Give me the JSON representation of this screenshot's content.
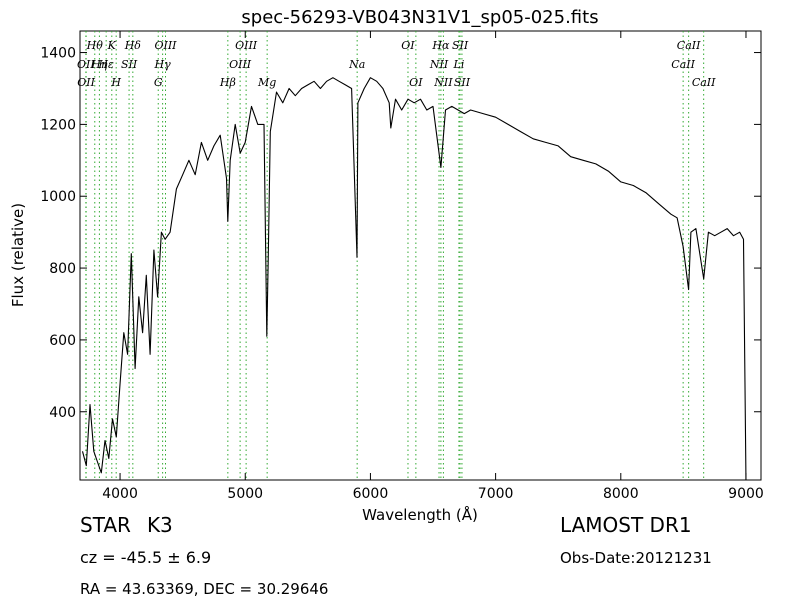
{
  "chart_data": {
    "type": "line",
    "title": "spec-56293-VB043N31V1_sp05-025.fits",
    "xlabel": "Wavelength (Å)",
    "ylabel": "Flux (relative)",
    "xlim": [
      3680,
      9120
    ],
    "ylim": [
      210,
      1460
    ],
    "xticks": [
      4000,
      5000,
      6000,
      7000,
      8000,
      9000
    ],
    "yticks": [
      400,
      600,
      800,
      1000,
      1200,
      1400
    ],
    "grid": false,
    "line_color": "#000000",
    "marker_color": "#33aa33",
    "series": [
      {
        "x": [
          3700,
          3730,
          3760,
          3790,
          3820,
          3850,
          3880,
          3910,
          3940,
          3970,
          4000,
          4030,
          4060,
          4090,
          4120,
          4150,
          4180,
          4210,
          4240,
          4270,
          4300,
          4330,
          4360,
          4400,
          4450,
          4500,
          4550,
          4600,
          4650,
          4700,
          4750,
          4800,
          4850,
          4861,
          4880,
          4920,
          4960,
          5000,
          5050,
          5100,
          5150,
          5172,
          5183,
          5200,
          5250,
          5300,
          5350,
          5400,
          5450,
          5500,
          5550,
          5600,
          5650,
          5700,
          5750,
          5800,
          5850,
          5893,
          5900,
          5950,
          6000,
          6050,
          6100,
          6150,
          6163,
          6200,
          6250,
          6300,
          6350,
          6400,
          6450,
          6500,
          6563,
          6600,
          6650,
          6700,
          6750,
          6800,
          6900,
          7000,
          7100,
          7200,
          7300,
          7400,
          7500,
          7600,
          7700,
          7800,
          7900,
          8000,
          8100,
          8200,
          8300,
          8400,
          8450,
          8498,
          8542,
          8560,
          8600,
          8662,
          8700,
          8750,
          8800,
          8850,
          8900,
          8950,
          8980,
          9000
        ],
        "y": [
          290,
          250,
          420,
          290,
          260,
          230,
          320,
          270,
          380,
          330,
          480,
          620,
          560,
          840,
          520,
          720,
          620,
          780,
          560,
          850,
          720,
          900,
          880,
          900,
          1020,
          1060,
          1100,
          1060,
          1150,
          1100,
          1140,
          1170,
          1050,
          930,
          1100,
          1200,
          1120,
          1150,
          1250,
          1200,
          1200,
          610,
          820,
          1180,
          1290,
          1260,
          1300,
          1280,
          1300,
          1310,
          1320,
          1300,
          1320,
          1330,
          1320,
          1310,
          1300,
          830,
          1260,
          1300,
          1330,
          1320,
          1300,
          1260,
          1190,
          1270,
          1240,
          1270,
          1260,
          1270,
          1240,
          1250,
          1080,
          1240,
          1250,
          1240,
          1230,
          1240,
          1230,
          1220,
          1200,
          1180,
          1160,
          1150,
          1140,
          1110,
          1100,
          1090,
          1070,
          1040,
          1030,
          1010,
          980,
          950,
          940,
          860,
          740,
          900,
          910,
          770,
          900,
          890,
          900,
          910,
          890,
          900,
          880,
          200
        ]
      }
    ],
    "line_markers": [
      {
        "label": "OII",
        "wavelength": 3727,
        "row": 1
      },
      {
        "label": "Hθ",
        "wavelength": 3798,
        "row": 0
      },
      {
        "label": "OII",
        "wavelength": 3729,
        "row": 2
      },
      {
        "label": "Hη",
        "wavelength": 3835,
        "row": 1
      },
      {
        "label": "K",
        "wavelength": 3934,
        "row": 0
      },
      {
        "label": "Hε",
        "wavelength": 3889,
        "row": 1
      },
      {
        "label": "SII",
        "wavelength": 4072,
        "row": 1
      },
      {
        "label": "H",
        "wavelength": 3969,
        "row": 2
      },
      {
        "label": "Hδ",
        "wavelength": 4102,
        "row": 0
      },
      {
        "label": "OIII",
        "wavelength": 4363,
        "row": 0
      },
      {
        "label": "Hγ",
        "wavelength": 4340,
        "row": 1
      },
      {
        "label": "G",
        "wavelength": 4305,
        "row": 2
      },
      {
        "label": "OIII",
        "wavelength": 5007,
        "row": 0
      },
      {
        "label": "OIII",
        "wavelength": 4959,
        "row": 1
      },
      {
        "label": "Hβ",
        "wavelength": 4861,
        "row": 2
      },
      {
        "label": "Mg",
        "wavelength": 5175,
        "row": 2
      },
      {
        "label": "Na",
        "wavelength": 5894,
        "row": 1
      },
      {
        "label": "OI",
        "wavelength": 6300,
        "row": 0
      },
      {
        "label": "OI",
        "wavelength": 6363,
        "row": 2
      },
      {
        "label": "Hα",
        "wavelength": 6563,
        "row": 0
      },
      {
        "label": "SII",
        "wavelength": 6716,
        "row": 0
      },
      {
        "label": "NII",
        "wavelength": 6548,
        "row": 1
      },
      {
        "label": "Li",
        "wavelength": 6707,
        "row": 1
      },
      {
        "label": "NII",
        "wavelength": 6583,
        "row": 2
      },
      {
        "label": "SII",
        "wavelength": 6731,
        "row": 2
      },
      {
        "label": "CaII",
        "wavelength": 8542,
        "row": 0
      },
      {
        "label": "CaII",
        "wavelength": 8498,
        "row": 1
      },
      {
        "label": "CaII",
        "wavelength": 8662,
        "row": 2
      }
    ]
  },
  "info": {
    "class": "STAR",
    "subclass": "K3",
    "survey": "LAMOST DR1",
    "cz": "cz = -45.5 ± 6.9",
    "obs_date": "Obs-Date:20121231",
    "radec": "RA = 43.63369, DEC = 30.29646"
  }
}
